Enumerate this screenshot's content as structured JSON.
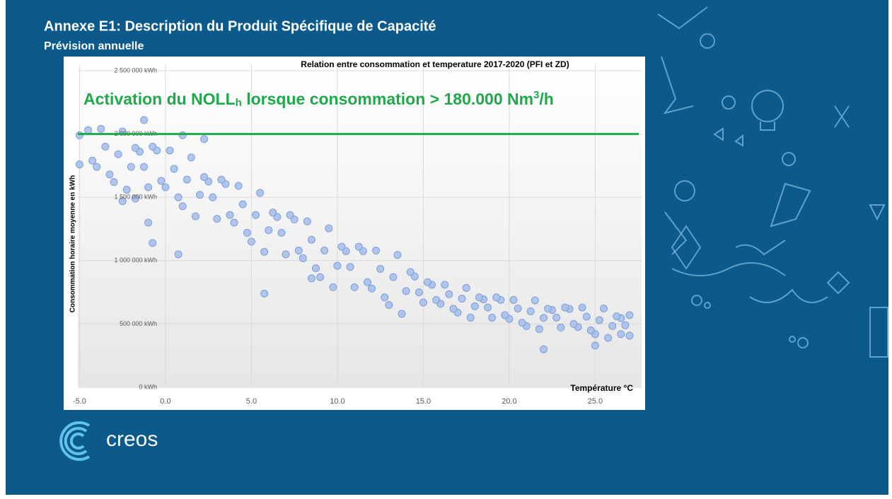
{
  "slide": {
    "title": "Annexe E1: Description du Produit Spécifique de Capacité",
    "subtitle": "Prévision annuelle",
    "logo_text": "creos"
  },
  "chart_data": {
    "type": "scatter",
    "title": "Relation entre consommation  et temperature 2017-2020 (PFI et ZD)",
    "x_label": "Température °C",
    "y_label": "Consommation horaire moyenne en kWh",
    "annotation_parts": [
      "Activation du NOLL",
      "h",
      " lorsque consommation > 180.000 Nm",
      "3",
      "/h"
    ],
    "threshold": {
      "value": 2000000,
      "color": "#1fa94b"
    },
    "color": "#a9c0ea",
    "grid": true,
    "xlim": [
      -5.1,
      27.7
    ],
    "ylim": [
      0,
      2550000
    ],
    "xticks": [
      {
        "value": -5,
        "label": "-5.0"
      },
      {
        "value": 0,
        "label": "0.0"
      },
      {
        "value": 5,
        "label": "5.0"
      },
      {
        "value": 10,
        "label": "10.0"
      },
      {
        "value": 15,
        "label": "15.0"
      },
      {
        "value": 20,
        "label": "20.0"
      },
      {
        "value": 25,
        "label": "25.0"
      }
    ],
    "yticks": [
      {
        "value": 0,
        "label": "0 kWh"
      },
      {
        "value": 500000,
        "label": "500 000 kWh"
      },
      {
        "value": 1000000,
        "label": "1 000 000 kWh"
      },
      {
        "value": 1500000,
        "label": "1 500 000 kWh"
      },
      {
        "value": 2000000,
        "label": "2 000 000 kWh"
      },
      {
        "value": 2500000,
        "label": "2 500 000 kWh"
      }
    ],
    "x": [
      -4.5,
      -4,
      -3.5,
      -3,
      -2.5,
      -2,
      -1.5,
      -1,
      -0.5,
      0,
      0.5,
      1,
      1.5,
      2,
      2.5,
      3,
      3.5,
      4,
      4.5,
      5,
      5.5,
      6,
      6.5,
      7,
      7.5,
      8,
      8.5,
      9,
      9.5,
      10,
      10.5,
      11,
      11.5,
      12,
      12.5,
      13,
      13.5,
      14,
      14.5,
      15,
      15.5,
      16,
      16.5,
      17,
      17.5,
      18,
      18.5,
      19,
      19.5,
      20,
      20.5,
      21,
      21.5,
      22,
      22.5,
      23,
      23.5,
      24,
      24.5,
      25,
      25.5,
      26,
      26.5,
      27,
      -4.25,
      -3.75,
      -3.25,
      -2.75,
      -2.25,
      -1.75,
      -1.25,
      -0.75,
      -0.25,
      0.25,
      0.75,
      1.25,
      1.75,
      2.25,
      2.75,
      3.25,
      3.75,
      4.25,
      4.75,
      5.25,
      5.75,
      6.25,
      6.75,
      7.25,
      7.75,
      8.25,
      8.75,
      9.25,
      9.75,
      10.25,
      10.75,
      11.25,
      11.75,
      12.25,
      12.75,
      13.25,
      13.75,
      14.25,
      14.75,
      15.25,
      15.75,
      16.25,
      16.75,
      17.25,
      17.75,
      18.25,
      18.75,
      19.25,
      19.75,
      20.25,
      20.75,
      21.25,
      21.75,
      22.25,
      22.75,
      23.25,
      23.75,
      24.25,
      24.75,
      25.25,
      25.75,
      26.25,
      26.75,
      -1.25,
      1,
      2.25,
      -5,
      -5,
      -1,
      -0.75,
      0.75,
      5.75,
      8.5,
      22,
      25,
      26.5,
      27,
      -2.5,
      -1.75
    ],
    "values": [
      2030000,
      1740000,
      1900000,
      1620000,
      2020000,
      1740000,
      1860000,
      1580000,
      1870000,
      1580000,
      1725000,
      1430000,
      1815000,
      1520000,
      1625000,
      1330000,
      1605000,
      1300000,
      1445000,
      1150000,
      1535000,
      1240000,
      1345000,
      1050000,
      1325000,
      1020000,
      1165000,
      870000,
      1255000,
      960000,
      1075000,
      790000,
      1075000,
      780000,
      935000,
      650000,
      1045000,
      760000,
      875000,
      670000,
      810000,
      660000,
      735000,
      590000,
      785000,
      640000,
      695000,
      550000,
      690000,
      540000,
      622000,
      484000,
      686000,
      548000,
      610000,
      472000,
      619000,
      476000,
      558000,
      420000,
      622000,
      484000,
      546000,
      408000,
      1790000,
      2040000,
      1680000,
      1840000,
      1560000,
      1890000,
      1740000,
      1900000,
      1630000,
      1870000,
      1500000,
      1640000,
      1350000,
      1660000,
      1500000,
      1640000,
      1360000,
      1590000,
      1220000,
      1360000,
      1070000,
      1380000,
      1220000,
      1360000,
      1080000,
      1310000,
      940000,
      1080000,
      790000,
      1110000,
      950000,
      1110000,
      830000,
      1080000,
      710000,
      870000,
      580000,
      910000,
      750000,
      830000,
      690000,
      810000,
      620000,
      700000,
      550000,
      710000,
      630000,
      710000,
      570000,
      690000,
      510000,
      600000,
      460000,
      620000,
      550000,
      630000,
      500000,
      630000,
      450000,
      530000,
      390000,
      560000,
      490000,
      2110000,
      1990000,
      1960000,
      1760000,
      1990000,
      1300000,
      1140000,
      1050000,
      740000,
      860000,
      300000,
      330000,
      420000,
      570000,
      1470000,
      1490000
    ]
  }
}
